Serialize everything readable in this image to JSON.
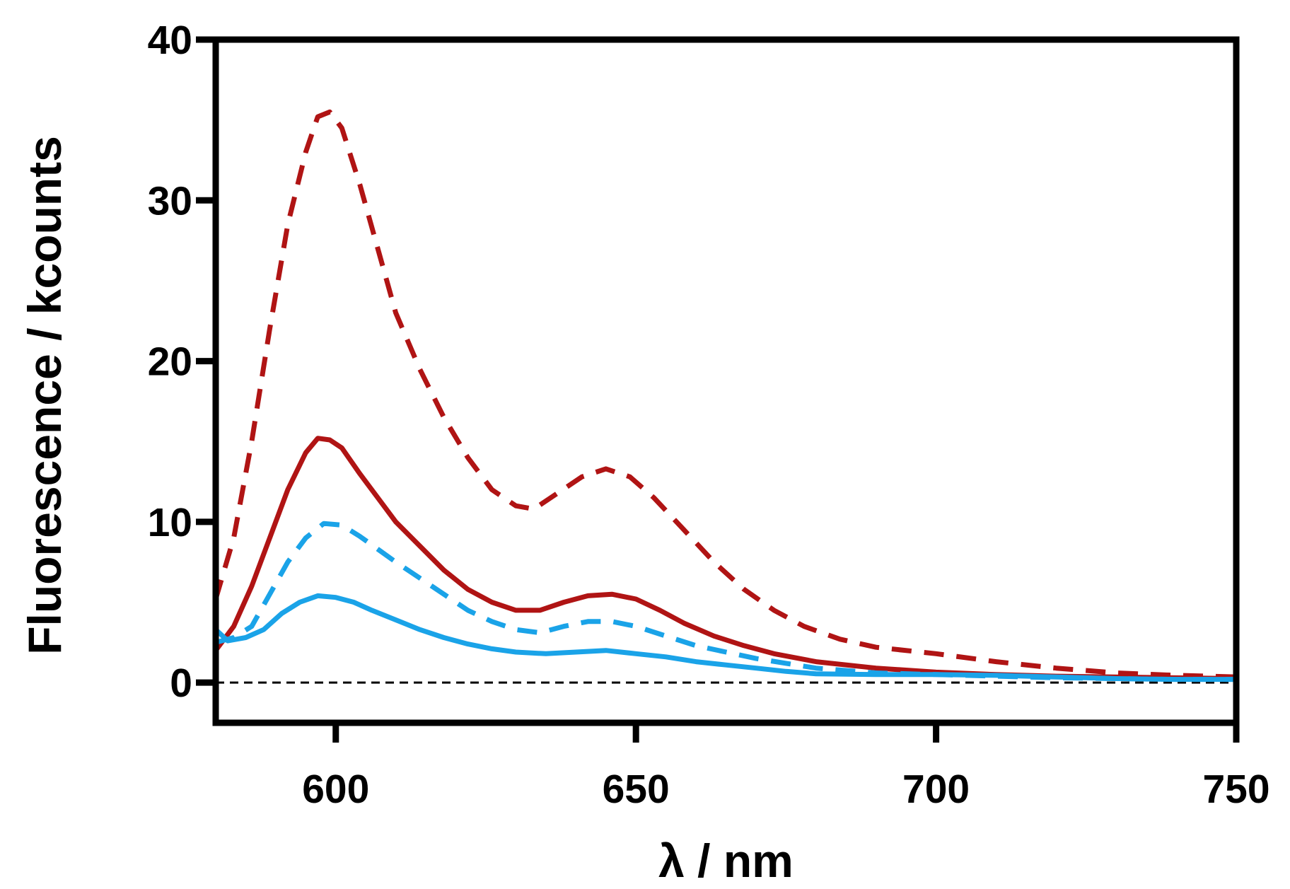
{
  "chart_data": {
    "type": "line",
    "title": "",
    "xlabel": "λ / nm",
    "ylabel": "Fluorescence / kcounts",
    "xlim": [
      580,
      750
    ],
    "ylim": [
      -2.5,
      40
    ],
    "x_ticks": [
      600,
      650,
      700,
      750
    ],
    "x_tick_labels": [
      "600",
      "650",
      "700",
      "750"
    ],
    "y_ticks": [
      0,
      10,
      20,
      30,
      40
    ],
    "y_tick_labels": [
      "0",
      "10",
      "20",
      "30",
      "40"
    ],
    "grid": false,
    "legend": "none",
    "reference_line": {
      "y": 0,
      "style": "dashed",
      "color": "#000000"
    },
    "series": [
      {
        "name": "dark-red-dashed",
        "color": "#b01414",
        "style": "dashed",
        "points": [
          [
            580,
            5.2
          ],
          [
            583,
            9
          ],
          [
            586,
            15
          ],
          [
            589,
            22
          ],
          [
            592,
            28.5
          ],
          [
            595,
            33
          ],
          [
            597,
            35.2
          ],
          [
            599,
            35.5
          ],
          [
            601,
            34.5
          ],
          [
            604,
            31
          ],
          [
            607,
            27
          ],
          [
            610,
            23
          ],
          [
            614,
            19.5
          ],
          [
            618,
            16.5
          ],
          [
            622,
            14
          ],
          [
            626,
            12
          ],
          [
            630,
            11
          ],
          [
            633,
            10.8
          ],
          [
            637,
            11.8
          ],
          [
            641,
            12.8
          ],
          [
            645,
            13.3
          ],
          [
            649,
            12.8
          ],
          [
            653,
            11.5
          ],
          [
            658,
            9.5
          ],
          [
            663,
            7.5
          ],
          [
            668,
            5.8
          ],
          [
            673,
            4.5
          ],
          [
            678,
            3.5
          ],
          [
            684,
            2.7
          ],
          [
            690,
            2.2
          ],
          [
            700,
            1.8
          ],
          [
            710,
            1.3
          ],
          [
            720,
            0.9
          ],
          [
            730,
            0.6
          ],
          [
            740,
            0.45
          ],
          [
            750,
            0.35
          ]
        ]
      },
      {
        "name": "dark-red-solid",
        "color": "#b01414",
        "style": "solid",
        "points": [
          [
            580,
            2.0
          ],
          [
            583,
            3.5
          ],
          [
            586,
            6
          ],
          [
            589,
            9
          ],
          [
            592,
            12
          ],
          [
            595,
            14.3
          ],
          [
            597,
            15.2
          ],
          [
            599,
            15.1
          ],
          [
            601,
            14.6
          ],
          [
            604,
            13
          ],
          [
            607,
            11.5
          ],
          [
            610,
            10
          ],
          [
            614,
            8.5
          ],
          [
            618,
            7
          ],
          [
            622,
            5.8
          ],
          [
            626,
            5
          ],
          [
            630,
            4.5
          ],
          [
            634,
            4.5
          ],
          [
            638,
            5
          ],
          [
            642,
            5.4
          ],
          [
            646,
            5.5
          ],
          [
            650,
            5.2
          ],
          [
            654,
            4.5
          ],
          [
            658,
            3.7
          ],
          [
            663,
            2.9
          ],
          [
            668,
            2.3
          ],
          [
            673,
            1.8
          ],
          [
            680,
            1.3
          ],
          [
            690,
            0.9
          ],
          [
            700,
            0.65
          ],
          [
            710,
            0.5
          ],
          [
            720,
            0.4
          ],
          [
            730,
            0.35
          ],
          [
            740,
            0.3
          ],
          [
            750,
            0.25
          ]
        ]
      },
      {
        "name": "light-blue-dashed",
        "color": "#1aa3e8",
        "style": "dashed",
        "points": [
          [
            580,
            2.5
          ],
          [
            583,
            2.8
          ],
          [
            586,
            3.5
          ],
          [
            589,
            5.5
          ],
          [
            592,
            7.5
          ],
          [
            595,
            9
          ],
          [
            598,
            9.9
          ],
          [
            601,
            9.8
          ],
          [
            604,
            9.1
          ],
          [
            607,
            8.3
          ],
          [
            610,
            7.5
          ],
          [
            614,
            6.5
          ],
          [
            618,
            5.5
          ],
          [
            622,
            4.5
          ],
          [
            626,
            3.8
          ],
          [
            630,
            3.3
          ],
          [
            634,
            3.1
          ],
          [
            638,
            3.5
          ],
          [
            642,
            3.8
          ],
          [
            646,
            3.8
          ],
          [
            650,
            3.5
          ],
          [
            655,
            2.9
          ],
          [
            660,
            2.3
          ],
          [
            665,
            1.9
          ],
          [
            670,
            1.5
          ],
          [
            675,
            1.2
          ],
          [
            680,
            0.9
          ],
          [
            690,
            0.6
          ],
          [
            700,
            0.5
          ],
          [
            710,
            0.4
          ],
          [
            720,
            0.3
          ],
          [
            730,
            0.25
          ],
          [
            740,
            0.2
          ],
          [
            750,
            0.2
          ]
        ]
      },
      {
        "name": "light-blue-solid",
        "color": "#1aa3e8",
        "style": "solid",
        "points": [
          [
            580,
            3.3
          ],
          [
            582,
            2.6
          ],
          [
            585,
            2.8
          ],
          [
            588,
            3.3
          ],
          [
            591,
            4.3
          ],
          [
            594,
            5
          ],
          [
            597,
            5.4
          ],
          [
            600,
            5.3
          ],
          [
            603,
            5
          ],
          [
            606,
            4.5
          ],
          [
            610,
            3.9
          ],
          [
            614,
            3.3
          ],
          [
            618,
            2.8
          ],
          [
            622,
            2.4
          ],
          [
            626,
            2.1
          ],
          [
            630,
            1.9
          ],
          [
            635,
            1.8
          ],
          [
            640,
            1.9
          ],
          [
            645,
            2
          ],
          [
            650,
            1.8
          ],
          [
            655,
            1.6
          ],
          [
            660,
            1.3
          ],
          [
            665,
            1.1
          ],
          [
            670,
            0.9
          ],
          [
            675,
            0.7
          ],
          [
            680,
            0.55
          ],
          [
            690,
            0.5
          ],
          [
            700,
            0.5
          ],
          [
            710,
            0.45
          ],
          [
            720,
            0.35
          ],
          [
            730,
            0.25
          ],
          [
            740,
            0.2
          ],
          [
            750,
            0.2
          ]
        ]
      }
    ]
  }
}
